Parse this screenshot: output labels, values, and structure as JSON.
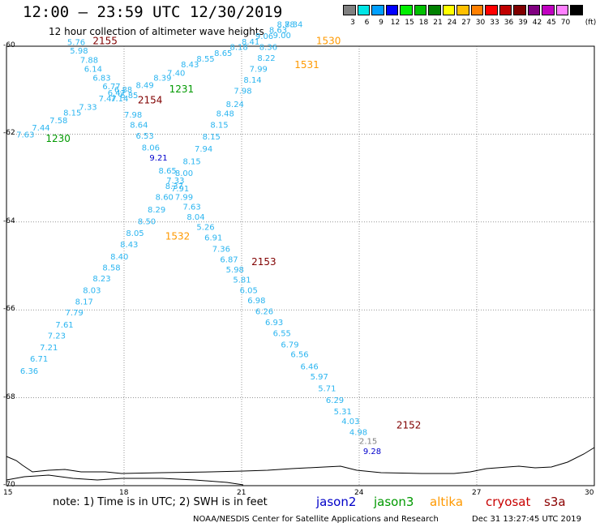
{
  "title": "12:00 – 23:59 UTC 12/30/2019",
  "subtitle": "12 hour collection of altimeter wave heights",
  "legend": {
    "unit": "(ft)",
    "bins": [
      {
        "label": "3",
        "color": "#808080"
      },
      {
        "label": "6",
        "color": "#00e5e5"
      },
      {
        "label": "9",
        "color": "#00a0ff"
      },
      {
        "label": "12",
        "color": "#0000ff"
      },
      {
        "label": "15",
        "color": "#00ee00"
      },
      {
        "label": "18",
        "color": "#00c000"
      },
      {
        "label": "21",
        "color": "#008000"
      },
      {
        "label": "24",
        "color": "#ffff00"
      },
      {
        "label": "27",
        "color": "#ffc000"
      },
      {
        "label": "30",
        "color": "#ff8000"
      },
      {
        "label": "33",
        "color": "#ff0000"
      },
      {
        "label": "36",
        "color": "#c00000"
      },
      {
        "label": "39",
        "color": "#800000"
      },
      {
        "label": "42",
        "color": "#800080"
      },
      {
        "label": "45",
        "color": "#c000c0"
      },
      {
        "label": "70",
        "color": "#ff80ff"
      },
      {
        "label": "",
        "color": "#000000"
      }
    ]
  },
  "axes": {
    "x_ticks": [
      "15",
      "18",
      "21",
      "24",
      "27",
      "30"
    ],
    "y_ticks": [
      "-60",
      "-62",
      "-64",
      "-66",
      "-68",
      "-70"
    ]
  },
  "map_data": {
    "lon_range": [
      15,
      30
    ],
    "lat_range": [
      -70,
      -60
    ],
    "grid_lons": [
      18,
      21,
      24,
      27
    ],
    "grid_lats": [
      -62,
      -64,
      -66,
      -68
    ],
    "swh": [
      {
        "lon": 16.55,
        "lat": -59.97,
        "v": "5.76",
        "sat": "jason2"
      },
      {
        "lon": 16.62,
        "lat": -60.17,
        "v": "5.98",
        "sat": "jason2"
      },
      {
        "lon": 16.88,
        "lat": -60.38,
        "v": "7.88",
        "sat": "jason2"
      },
      {
        "lon": 16.98,
        "lat": -60.58,
        "v": "6.14",
        "sat": "jason2"
      },
      {
        "lon": 17.2,
        "lat": -60.78,
        "v": "6.83",
        "sat": "jason2"
      },
      {
        "lon": 17.45,
        "lat": -60.98,
        "v": "6.77",
        "sat": "jason2"
      },
      {
        "lon": 17.58,
        "lat": -61.13,
        "v": "6.47",
        "sat": "jason2"
      },
      {
        "lon": 17.65,
        "lat": -61.25,
        "v": "7.14",
        "sat": "jason2"
      },
      {
        "lon": 18.0,
        "lat": -61.62,
        "v": "7.98",
        "sat": "jason2"
      },
      {
        "lon": 18.15,
        "lat": -61.85,
        "v": "8.64",
        "sat": "jason2"
      },
      {
        "lon": 18.3,
        "lat": -62.1,
        "v": "6.53",
        "sat": "jason2"
      },
      {
        "lon": 18.45,
        "lat": -62.37,
        "v": "8.06",
        "sat": "jason2"
      },
      {
        "lon": 18.65,
        "lat": -62.6,
        "v": "9.21",
        "sat": "jason2",
        "hi": true
      },
      {
        "lon": 18.88,
        "lat": -62.9,
        "v": "8.65",
        "sat": "jason2"
      },
      {
        "lon": 19.08,
        "lat": -63.12,
        "v": "7.33",
        "sat": "jason2"
      },
      {
        "lon": 19.2,
        "lat": -63.3,
        "v": "7.91",
        "sat": "jason2"
      },
      {
        "lon": 19.3,
        "lat": -63.5,
        "v": "7.99",
        "sat": "jason2"
      },
      {
        "lon": 19.5,
        "lat": -63.72,
        "v": "7.63",
        "sat": "jason2"
      },
      {
        "lon": 19.6,
        "lat": -63.95,
        "v": "8.04",
        "sat": "jason2"
      },
      {
        "lon": 19.85,
        "lat": -64.18,
        "v": "5.26",
        "sat": "jason2"
      },
      {
        "lon": 20.05,
        "lat": -64.42,
        "v": "6.91",
        "sat": "jason2"
      },
      {
        "lon": 20.25,
        "lat": -64.68,
        "v": "7.36",
        "sat": "jason2"
      },
      {
        "lon": 20.45,
        "lat": -64.92,
        "v": "6.87",
        "sat": "jason2"
      },
      {
        "lon": 20.6,
        "lat": -65.15,
        "v": "5.98",
        "sat": "jason2"
      },
      {
        "lon": 20.78,
        "lat": -65.38,
        "v": "5.81",
        "sat": "jason2"
      },
      {
        "lon": 20.95,
        "lat": -65.62,
        "v": "6.05",
        "sat": "jason2"
      },
      {
        "lon": 21.15,
        "lat": -65.85,
        "v": "6.98",
        "sat": "jason2"
      },
      {
        "lon": 21.35,
        "lat": -66.1,
        "v": "6.26",
        "sat": "jason2"
      },
      {
        "lon": 21.6,
        "lat": -66.35,
        "v": "6.93",
        "sat": "jason2"
      },
      {
        "lon": 21.8,
        "lat": -66.6,
        "v": "6.55",
        "sat": "jason2"
      },
      {
        "lon": 22.0,
        "lat": -66.85,
        "v": "6.79",
        "sat": "jason2"
      },
      {
        "lon": 22.25,
        "lat": -67.08,
        "v": "6.56",
        "sat": "jason2"
      },
      {
        "lon": 22.5,
        "lat": -67.35,
        "v": "6.46",
        "sat": "jason2"
      },
      {
        "lon": 22.75,
        "lat": -67.58,
        "v": "5.97",
        "sat": "jason2"
      },
      {
        "lon": 22.95,
        "lat": -67.85,
        "v": "5.71",
        "sat": "jason2"
      },
      {
        "lon": 23.15,
        "lat": -68.12,
        "v": "6.29",
        "sat": "jason2"
      },
      {
        "lon": 23.35,
        "lat": -68.38,
        "v": "5.31",
        "sat": "jason2"
      },
      {
        "lon": 23.55,
        "lat": -68.6,
        "v": "4.03",
        "sat": "jason2"
      },
      {
        "lon": 23.75,
        "lat": -68.85,
        "v": "4.98",
        "sat": "jason2"
      },
      {
        "lon": 24.0,
        "lat": -69.05,
        "v": "2.15",
        "sat": "jason2",
        "lo": true
      },
      {
        "lon": 24.1,
        "lat": -69.28,
        "v": "9.28",
        "sat": "jason2",
        "hi": true
      },
      {
        "lon": 15.25,
        "lat": -62.08,
        "v": "7.63",
        "sat": "jason3"
      },
      {
        "lon": 15.65,
        "lat": -61.92,
        "v": "7.44",
        "sat": "jason3"
      },
      {
        "lon": 16.1,
        "lat": -61.75,
        "v": "7.58",
        "sat": "jason3"
      },
      {
        "lon": 16.45,
        "lat": -61.58,
        "v": "8.15",
        "sat": "jason3"
      },
      {
        "lon": 16.85,
        "lat": -61.45,
        "v": "7.33",
        "sat": "jason3"
      },
      {
        "lon": 17.35,
        "lat": -61.25,
        "v": "7.47",
        "sat": "jason3"
      },
      {
        "lon": 17.75,
        "lat": -61.05,
        "v": "6.88",
        "sat": "jason3"
      },
      {
        "lon": 17.9,
        "lat": -61.18,
        "v": "6.85",
        "sat": "jason3"
      },
      {
        "lon": 18.3,
        "lat": -60.95,
        "v": "8.49",
        "sat": "jason3"
      },
      {
        "lon": 18.75,
        "lat": -60.78,
        "v": "8.39",
        "sat": "jason3"
      },
      {
        "lon": 19.1,
        "lat": -60.67,
        "v": "7.40",
        "sat": "jason3"
      },
      {
        "lon": 19.45,
        "lat": -60.48,
        "v": "8.43",
        "sat": "jason3"
      },
      {
        "lon": 19.85,
        "lat": -60.35,
        "v": "8.55",
        "sat": "jason3"
      },
      {
        "lon": 20.3,
        "lat": -60.22,
        "v": "8.65",
        "sat": "jason3"
      },
      {
        "lon": 20.7,
        "lat": -60.08,
        "v": "8.18",
        "sat": "jason3"
      },
      {
        "lon": 21.0,
        "lat": -59.96,
        "v": "8.41",
        "sat": "jason3"
      },
      {
        "lon": 21.35,
        "lat": -59.83,
        "v": "9.06",
        "sat": "jason3"
      },
      {
        "lon": 21.7,
        "lat": -59.7,
        "v": "8.63",
        "sat": "jason3"
      },
      {
        "lon": 21.8,
        "lat": -59.82,
        "v": "9.00",
        "sat": "jason3"
      },
      {
        "lon": 21.9,
        "lat": -59.57,
        "v": "8.78",
        "sat": "jason3"
      },
      {
        "lon": 22.1,
        "lat": -59.57,
        "v": "8.34",
        "sat": "jason3"
      },
      {
        "lon": 21.45,
        "lat": -60.08,
        "v": "8.36",
        "sat": "jason3"
      },
      {
        "lon": 21.4,
        "lat": -60.33,
        "v": "8.22",
        "sat": "jason3"
      },
      {
        "lon": 21.2,
        "lat": -60.58,
        "v": "7.99",
        "sat": "jason3"
      },
      {
        "lon": 21.05,
        "lat": -60.83,
        "v": "8.14",
        "sat": "jason3"
      },
      {
        "lon": 20.8,
        "lat": -61.08,
        "v": "7.98",
        "sat": "jason3"
      },
      {
        "lon": 20.6,
        "lat": -61.38,
        "v": "8.24",
        "sat": "jason3"
      },
      {
        "lon": 20.35,
        "lat": -61.6,
        "v": "8.48",
        "sat": "jason3"
      },
      {
        "lon": 20.2,
        "lat": -61.85,
        "v": "8.15",
        "sat": "jason3"
      },
      {
        "lon": 20.0,
        "lat": -62.12,
        "v": "8.15",
        "sat": "jason3"
      },
      {
        "lon": 19.8,
        "lat": -62.4,
        "v": "7.94",
        "sat": "jason3"
      },
      {
        "lon": 19.5,
        "lat": -62.68,
        "v": "8.15",
        "sat": "jason3"
      },
      {
        "lon": 19.3,
        "lat": -62.95,
        "v": "8.00",
        "sat": "jason3"
      },
      {
        "lon": 19.05,
        "lat": -63.25,
        "v": "8.37",
        "sat": "jason3"
      },
      {
        "lon": 18.8,
        "lat": -63.5,
        "v": "8.60",
        "sat": "jason3"
      },
      {
        "lon": 18.6,
        "lat": -63.78,
        "v": "8.29",
        "sat": "jason3"
      },
      {
        "lon": 18.35,
        "lat": -64.05,
        "v": "8.50",
        "sat": "jason3"
      },
      {
        "lon": 18.05,
        "lat": -64.32,
        "v": "8.05",
        "sat": "jason3"
      },
      {
        "lon": 17.9,
        "lat": -64.58,
        "v": "8.43",
        "sat": "jason3"
      },
      {
        "lon": 17.65,
        "lat": -64.85,
        "v": "8.40",
        "sat": "jason3"
      },
      {
        "lon": 17.45,
        "lat": -65.1,
        "v": "8.58",
        "sat": "jason3"
      },
      {
        "lon": 17.2,
        "lat": -65.35,
        "v": "8.23",
        "sat": "jason3"
      },
      {
        "lon": 16.95,
        "lat": -65.62,
        "v": "8.03",
        "sat": "jason3"
      },
      {
        "lon": 16.75,
        "lat": -65.88,
        "v": "8.17",
        "sat": "jason3"
      },
      {
        "lon": 16.5,
        "lat": -66.13,
        "v": "7.79",
        "sat": "jason3"
      },
      {
        "lon": 16.25,
        "lat": -66.4,
        "v": "7.61",
        "sat": "jason3"
      },
      {
        "lon": 16.05,
        "lat": -66.65,
        "v": "7.23",
        "sat": "jason3"
      },
      {
        "lon": 15.85,
        "lat": -66.92,
        "v": "7.21",
        "sat": "jason3"
      },
      {
        "lon": 15.6,
        "lat": -67.18,
        "v": "6.71",
        "sat": "jason3"
      },
      {
        "lon": 15.35,
        "lat": -67.45,
        "v": "6.36",
        "sat": "jason3"
      }
    ],
    "pass_labels": [
      {
        "lon": 17.2,
        "lat": -59.95,
        "text": "2155",
        "sat": "cryosat"
      },
      {
        "lon": 18.35,
        "lat": -61.3,
        "text": "2154",
        "sat": "cryosat"
      },
      {
        "lon": 21.25,
        "lat": -64.98,
        "text": "2153",
        "sat": "cryosat"
      },
      {
        "lon": 24.95,
        "lat": -68.7,
        "text": "2152",
        "sat": "cryosat"
      },
      {
        "lon": 22.9,
        "lat": -59.95,
        "text": "1530",
        "sat": "altika"
      },
      {
        "lon": 22.35,
        "lat": -60.5,
        "text": "1531",
        "sat": "altika"
      },
      {
        "lon": 19.05,
        "lat": -64.4,
        "text": "1532",
        "sat": "altika"
      },
      {
        "lon": 19.15,
        "lat": -61.05,
        "text": "1231",
        "sat": "jason3"
      },
      {
        "lon": 16.0,
        "lat": -62.18,
        "text": "1230",
        "sat": "jason3"
      }
    ]
  },
  "note": "note:  1) Time is in UTC;  2) SWH is in feet",
  "satellites": [
    {
      "name": "jason2",
      "color": "#0000c8"
    },
    {
      "name": "jason3",
      "color": "#009900"
    },
    {
      "name": "altika",
      "color": "#ff9900"
    },
    {
      "name": "cryosat",
      "color": "#c80000"
    },
    {
      "name": "s3a",
      "color": "#8b0000"
    }
  ],
  "credit": "NOAA/NESDIS Center for Satellite Applications and Research",
  "timestamp": "Dec 31 13:27:45 UTC 2019",
  "colors": {
    "swh_default": "#2bb5f0",
    "swh_high": "#0000cc",
    "swh_low": "#808080",
    "grid": "#555555",
    "coast": "#000000"
  }
}
